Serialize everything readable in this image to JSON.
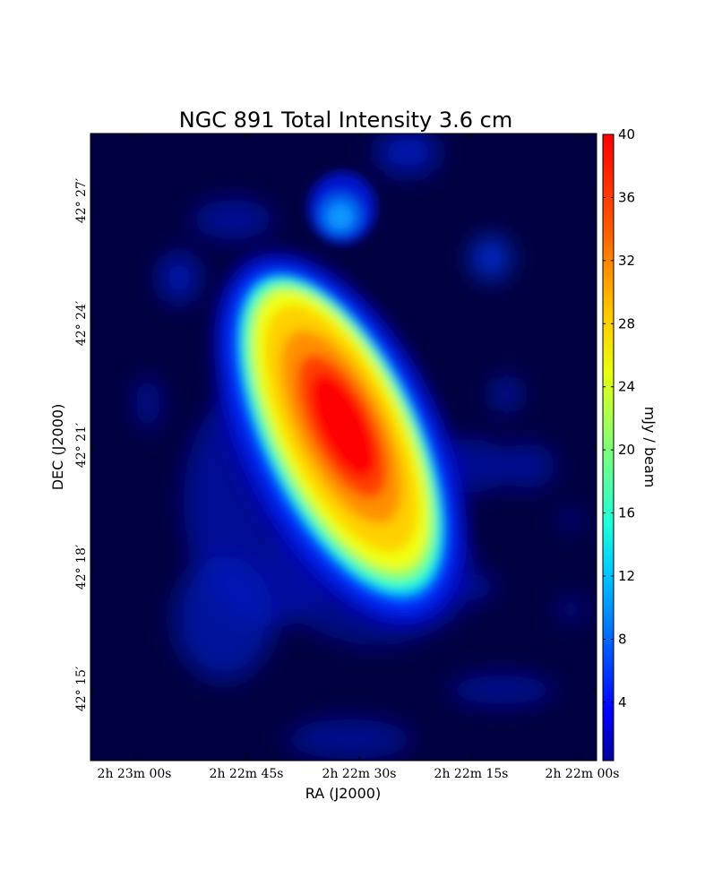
{
  "chart_data": {
    "type": "heatmap",
    "title": "NGC 891 Total Intensity 3.6 cm",
    "xlabel": "RA (J2000)",
    "ylabel": "DEC (J2000)",
    "x_ticks": [
      "2h 23m 00s",
      "2h 22m 45s",
      "2h 22m 30s",
      "2h 22m 15s",
      "2h 22m 00s"
    ],
    "y_ticks": [
      "42° 27′",
      "42° 24′",
      "42° 21′",
      "42° 18′",
      "42° 15′"
    ],
    "colorbar": {
      "label": "mJy / beam",
      "range": [
        0.3,
        40
      ],
      "ticks": [
        "4",
        "8",
        "12",
        "16",
        "20",
        "24",
        "28",
        "32",
        "36",
        "40"
      ],
      "colormap": "jet"
    },
    "grid": false,
    "legend": "none",
    "sources": [
      {
        "ra": "2h 22m 30s",
        "dec": "42° 20′ 30″",
        "peak": 40,
        "description": "main disk, elongated NNW-SSE"
      },
      {
        "ra": "2h 22m 32s",
        "dec": "42° 26′ 40″",
        "peak": 6
      },
      {
        "ra": "2h 22m 20s",
        "dec": "42° 25′ 40″",
        "peak": 2
      }
    ]
  }
}
